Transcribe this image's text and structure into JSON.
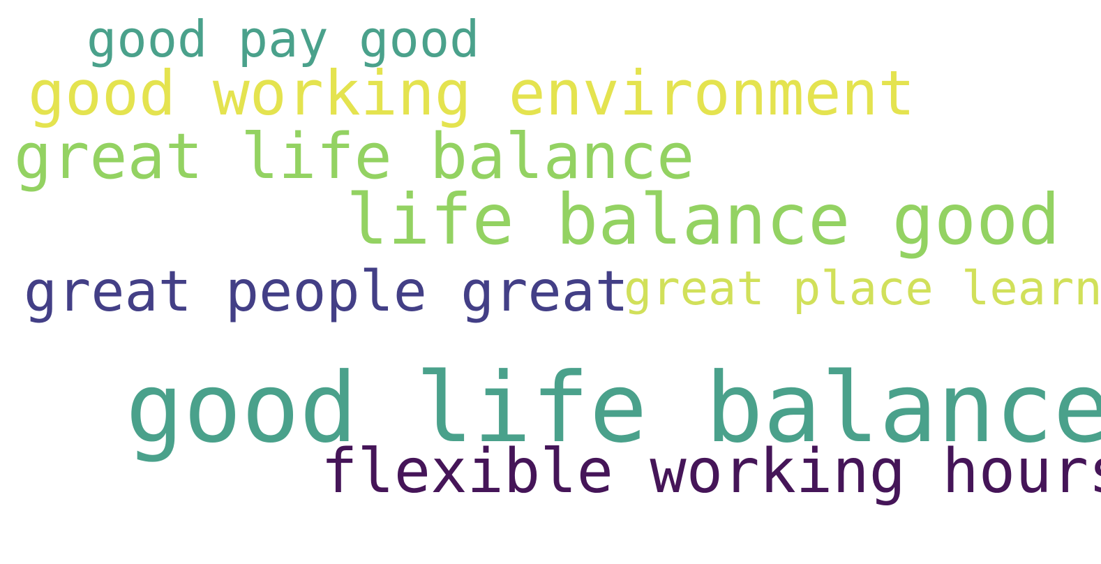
{
  "word_cloud": {
    "phrases": [
      {
        "text": "good pay good",
        "color": "#4aa18b"
      },
      {
        "text": "good working environment",
        "color": "#e4e34f"
      },
      {
        "text": "great life balance",
        "color": "#93d262"
      },
      {
        "text": "life balance good",
        "color": "#93d262"
      },
      {
        "text": "great people great",
        "color": "#433f86"
      },
      {
        "text": "great place learn",
        "color": "#d1e05a"
      },
      {
        "text": "good life balance",
        "color": "#4aa18b"
      },
      {
        "text": "flexible working hours",
        "color": "#451558"
      }
    ]
  }
}
